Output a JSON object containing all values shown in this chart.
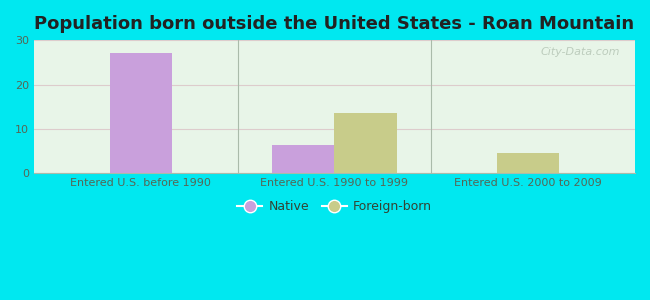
{
  "title": "Population born outside the United States - Roan Mountain",
  "categories": [
    "Entered U.S. before 1990",
    "Entered U.S. 1990 to 1999",
    "Entered U.S. 2000 to 2009"
  ],
  "native_values": [
    27,
    6.5,
    0
  ],
  "foreign_values": [
    0,
    13.5,
    4.5
  ],
  "native_color": "#c9a0dc",
  "foreign_color": "#c8cc8a",
  "background_outer": "#00e8f0",
  "background_plot_topleft": "#e8f8e8",
  "background_plot_bottomright": "#f8fff8",
  "ylim": [
    0,
    30
  ],
  "yticks": [
    0,
    10,
    20,
    30
  ],
  "bar_width": 0.32,
  "title_fontsize": 13,
  "tick_fontsize": 8,
  "legend_fontsize": 9,
  "watermark": "City-Data.com"
}
